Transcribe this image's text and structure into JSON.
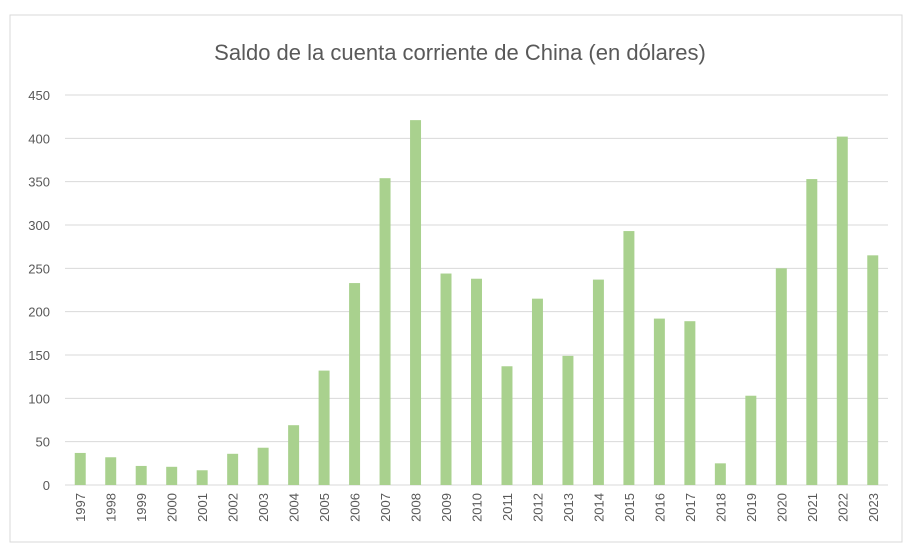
{
  "chart_data": {
    "type": "bar",
    "title": "Saldo de la cuenta corriente de China (en dólares)",
    "categories": [
      "1997",
      "1998",
      "1999",
      "2000",
      "2001",
      "2002",
      "2003",
      "2004",
      "2005",
      "2006",
      "2007",
      "2008",
      "2009",
      "2010",
      "2011",
      "2012",
      "2013",
      "2014",
      "2015",
      "2016",
      "2017",
      "2018",
      "2019",
      "2020",
      "2021",
      "2022",
      "2023"
    ],
    "values": [
      37,
      32,
      22,
      21,
      17,
      36,
      43,
      69,
      132,
      233,
      354,
      421,
      244,
      238,
      137,
      215,
      149,
      237,
      293,
      192,
      189,
      25,
      103,
      250,
      353,
      402,
      265
    ],
    "color": "#a9d18e",
    "ylim": [
      0,
      450
    ],
    "yticks": [
      0,
      50,
      100,
      150,
      200,
      250,
      300,
      350,
      400,
      450
    ],
    "grid": true
  }
}
